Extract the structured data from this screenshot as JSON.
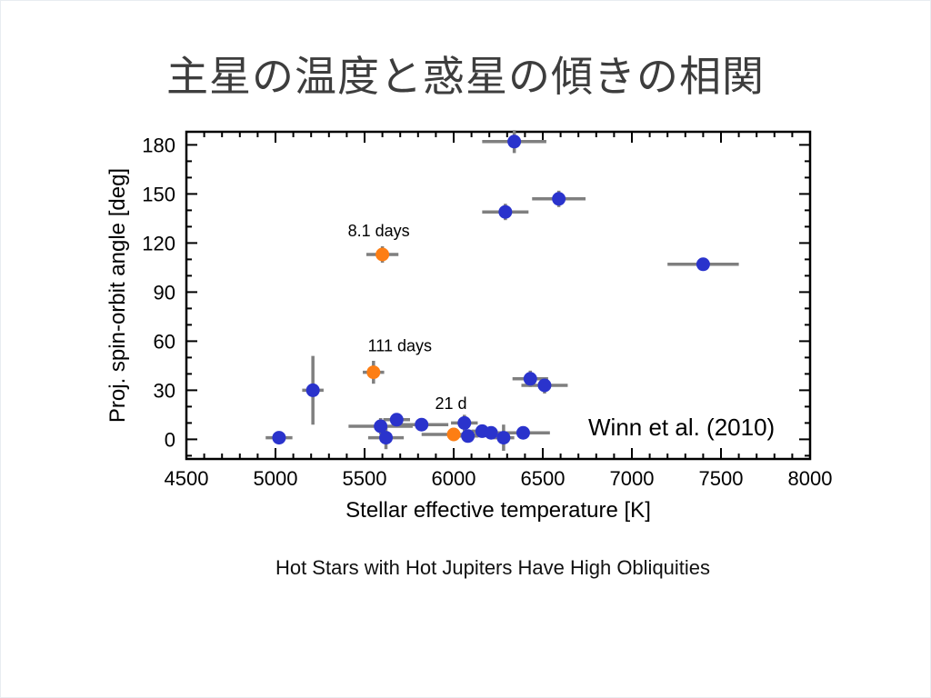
{
  "slide": {
    "title": "主星の温度と惑星の傾きの相関",
    "caption": "Hot Stars with Hot Jupiters Have High Obliquities"
  },
  "chart_data": {
    "type": "scatter",
    "title": "",
    "xlabel": "Stellar effective temperature [K]",
    "ylabel": "Proj. spin-orbit angle [deg]",
    "xlim": [
      4500,
      8000
    ],
    "ylim": [
      -12,
      188
    ],
    "x_ticks": [
      4500,
      5000,
      5500,
      6000,
      6500,
      7000,
      7500,
      8000
    ],
    "y_ticks": [
      0,
      30,
      60,
      90,
      120,
      150,
      180
    ],
    "x_minor_step": 100,
    "y_minor_step": 10,
    "grid": false,
    "annotation": {
      "text": "Winn et al. (2010)"
    },
    "error_bar_color": "#7f7f7f",
    "series": [
      {
        "name": "hot-jupiter-hosts-blue",
        "marker": "circle",
        "marker_color": "#2a33cc",
        "points": [
          {
            "x": 6340,
            "y": 182,
            "xerr": 180,
            "yerr": 7
          },
          {
            "x": 6590,
            "y": 147,
            "xerr": 150,
            "yerr": 5
          },
          {
            "x": 6290,
            "y": 139,
            "xerr": 130,
            "yerr": 5
          },
          {
            "x": 7400,
            "y": 107,
            "xerr": 200,
            "yerr": 4
          },
          {
            "x": 5210,
            "y": 30,
            "xerr": 60,
            "yerr": 21
          },
          {
            "x": 6430,
            "y": 37,
            "xerr": 100,
            "yerr": 5
          },
          {
            "x": 6510,
            "y": 33,
            "xerr": 130,
            "yerr": 5
          },
          {
            "x": 5020,
            "y": 1,
            "xerr": 75,
            "yerr": 3
          },
          {
            "x": 5590,
            "y": 8,
            "xerr": 180,
            "yerr": 5
          },
          {
            "x": 5620,
            "y": 1,
            "xerr": 100,
            "yerr": 7
          },
          {
            "x": 5680,
            "y": 12,
            "xerr": 75,
            "yerr": 4
          },
          {
            "x": 5820,
            "y": 9,
            "xerr": 150,
            "yerr": 4
          },
          {
            "x": 6060,
            "y": 10,
            "xerr": 75,
            "yerr": 5
          },
          {
            "x": 6080,
            "y": 2,
            "xerr": 60,
            "yerr": 4
          },
          {
            "x": 6160,
            "y": 5,
            "xerr": 60,
            "yerr": 4
          },
          {
            "x": 6210,
            "y": 4,
            "xerr": 60,
            "yerr": 4
          },
          {
            "x": 6280,
            "y": 1,
            "xerr": 60,
            "yerr": 8
          },
          {
            "x": 6390,
            "y": 4,
            "xerr": 150,
            "yerr": 4
          }
        ]
      },
      {
        "name": "labeled-period-planets-orange",
        "marker": "circle",
        "marker_color": "#fd7e14",
        "points": [
          {
            "x": 5600,
            "y": 113,
            "xerr": 90,
            "yerr": 5,
            "label": "8.1 days",
            "label_dx": -4,
            "label_dy": -20
          },
          {
            "x": 5550,
            "y": 41,
            "xerr": 60,
            "yerr": 7,
            "label": "111 days",
            "label_dx": 29,
            "label_dy": -23
          },
          {
            "x": 6000,
            "y": 3,
            "xerr": 180,
            "yerr": 4,
            "label": "21 d",
            "label_dx": -3,
            "label_dy": -28
          }
        ]
      }
    ]
  }
}
